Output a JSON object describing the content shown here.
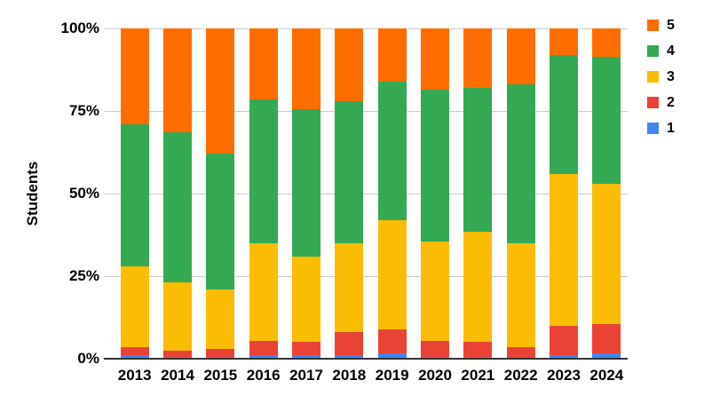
{
  "chart_data": {
    "type": "bar",
    "subtype": "100%-stacked-column",
    "title": "",
    "xlabel": "",
    "ylabel": "Students",
    "ylim": [
      0,
      100
    ],
    "grid": true,
    "y_ticks": [
      "0%",
      "25%",
      "50%",
      "75%",
      "100%"
    ],
    "y_tick_values": [
      0,
      25,
      50,
      75,
      100
    ],
    "categories": [
      "2013",
      "2014",
      "2015",
      "2016",
      "2017",
      "2018",
      "2019",
      "2020",
      "2021",
      "2022",
      "2023",
      "2024"
    ],
    "series": [
      {
        "name": "1",
        "color": "#4285F4",
        "values": [
          1,
          0.5,
          0.5,
          1,
          1,
          1,
          1.5,
          0.5,
          0.5,
          0,
          1,
          1.5
        ]
      },
      {
        "name": "2",
        "color": "#EA4335",
        "values": [
          2.5,
          2,
          2.5,
          4.5,
          4,
          7,
          7.5,
          5,
          4.5,
          3.5,
          9,
          9
        ]
      },
      {
        "name": "3",
        "color": "#FBBC04",
        "values": [
          24.5,
          20.5,
          18,
          29.5,
          26,
          27,
          33,
          30,
          33.5,
          31.5,
          46,
          42.5
        ]
      },
      {
        "name": "4",
        "color": "#34A853",
        "values": [
          43,
          45.5,
          41,
          43.5,
          44.5,
          43,
          42,
          46,
          43.5,
          48,
          36,
          38.5
        ]
      },
      {
        "name": "5",
        "color": "#FF6D01",
        "values": [
          29,
          31.5,
          38,
          21.5,
          24.5,
          22,
          16,
          18.5,
          18,
          17,
          8,
          8.5
        ]
      }
    ],
    "legend": {
      "position": "right",
      "items": [
        {
          "label": "5",
          "color": "#FF6D01"
        },
        {
          "label": "4",
          "color": "#34A853"
        },
        {
          "label": "3",
          "color": "#FBBC04"
        },
        {
          "label": "2",
          "color": "#EA4335"
        },
        {
          "label": "1",
          "color": "#4285F4"
        }
      ]
    },
    "colors": {
      "gridline": "#cccccc",
      "axis_line": "#333333",
      "text": "#000000"
    }
  }
}
